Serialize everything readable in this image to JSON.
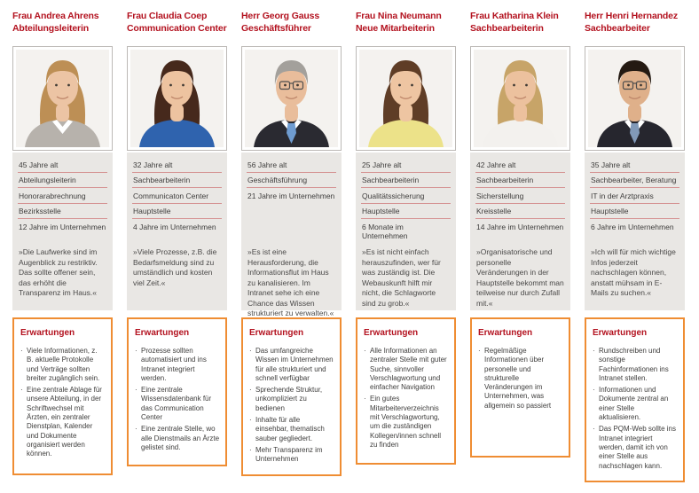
{
  "theme": {
    "red": "#b3121f",
    "orange": "#ef8d33",
    "panel_gray": "#e9e7e4",
    "rule_red": "#d59494",
    "text_dark": "#3e3d3c",
    "photo_bg": "#f4f2ef"
  },
  "section": {
    "expectations_heading": "Erwartungen",
    "bullet_glyph": "·"
  },
  "personas": [
    {
      "name": "Frau Andrea Ahrens",
      "role": "Abteilungsleiterin",
      "facts": [
        "45 Jahre alt",
        "Abteilungsleiterin",
        "Honorarabrechnung",
        "Bezirksstelle",
        "12 Jahre im Unternehmen"
      ],
      "quote": "»Die Laufwerke sind im Augenblick zu restriktiv. Das sollte offener sein, das erhöht die Transparenz im Haus.«",
      "expectations": [
        "Viele Informationen, z. B. aktuelle Protokolle und Verträge sollten breiter zugänglich sein.",
        "Eine zentrale Ablage für unsere Abteilung, in der Schriftwechsel mit Ärzten, ein zentraler Dienstplan, Kalender und Dokumente organisiert werden können."
      ],
      "avatar": {
        "skin": "#ecc4a4",
        "hair": "#bd8f55",
        "clothing": "#b7b2ac",
        "long_hair": "1",
        "collar": "1",
        "tie": "0",
        "tie_color": "#555555",
        "glasses": "0"
      }
    },
    {
      "name": "Frau Claudia Coep",
      "role": "Communication Center",
      "facts": [
        "32 Jahre alt",
        "Sachbearbeiterin",
        "Communicaton Center",
        "Hauptstelle",
        "4 Jahre im Unternehmen"
      ],
      "quote": "»Viele Prozesse, z.B. die Bedarfsmeldung sind zu umständlich und kosten viel Zeit.«",
      "expectations": [
        "Prozesse sollten automatisiert und ins Intranet integriert werden.",
        "Eine zentrale Wissensdatenbank für das Communication Center",
        "Eine zentrale Stelle, wo alle Dienstmails an Ärzte gelistet sind."
      ],
      "avatar": {
        "skin": "#edc3a0",
        "hair": "#46291c",
        "clothing": "#2f63ae",
        "long_hair": "1",
        "collar": "0",
        "tie": "0",
        "tie_color": "#555555",
        "glasses": "0"
      }
    },
    {
      "name": "Herr Georg Gauss",
      "role": "Geschäftsführer",
      "facts": [
        "56 Jahre alt",
        "Geschäftsführung",
        "21 Jahre im Unternehmen"
      ],
      "quote": "»Es ist eine Herausforderung, die Informationsflut im Haus zu kanalisieren. Im Intranet sehe ich eine Chance das Wissen strukturiert zu verwalten.«",
      "expectations": [
        "Das umfangreiche Wissen im Unternehmen für alle strukturiert und schnell verfügbar",
        "Sprechende Struktur, unkompliziert zu bedienen",
        "Inhalte für alle einsehbar, thematisch sauber gegliedert.",
        "Mehr Transparenz im Unternehmen"
      ],
      "avatar": {
        "skin": "#e9bd9b",
        "hair": "#a3a09b",
        "clothing": "#2a2a31",
        "long_hair": "0",
        "collar": "1",
        "tie": "1",
        "tie_color": "#6f9cd1",
        "glasses": "1"
      }
    },
    {
      "name": "Frau Nina Neumann",
      "role": "Neue Mitarbeiterin",
      "facts": [
        "25 Jahre alt",
        "Sachbearbeiterin",
        "Qualitätssicherung",
        "Hauptstelle",
        "6 Monate im Unternehmen"
      ],
      "quote": "»Es ist nicht einfach herauszufinden, wer für was zuständig ist. Die Webauskunft hilft mir nicht, die Schlagworte sind zu grob.«",
      "expectations": [
        "Alle Informationen an zentraler Stelle mit guter Suche, sinnvoller Verschlagwortung und einfacher Navigation",
        "Ein gutes Mitarbeiterverzeichnis mit Verschlagwortung, um die zuständigen Kollegen/innen schnell zu finden"
      ],
      "avatar": {
        "skin": "#eec5a2",
        "hair": "#5f3d26",
        "clothing": "#ece289",
        "long_hair": "1",
        "collar": "0",
        "tie": "0",
        "tie_color": "#555555",
        "glasses": "0"
      }
    },
    {
      "name": "Frau Katharina Klein",
      "role": "Sachbearbeiterin",
      "facts": [
        "42 Jahre alt",
        "Sachbearbeiterin",
        "Sicherstellung",
        "Kreisstelle",
        "14 Jahre im Unternehmen"
      ],
      "quote": "»Organisatorische und personelle Veränderungen in der Hauptstelle bekommt man teilweise nur durch Zufall mit.«",
      "expectations": [
        "Regelmäßige Informationen über personelle und strukturelle Veränderungen im Unternehmen, was allgemein so passiert"
      ],
      "avatar": {
        "skin": "#ecc19e",
        "hair": "#c7a468",
        "clothing": "#f3f1ee",
        "long_hair": "1",
        "collar": "0",
        "tie": "0",
        "tie_color": "#555555",
        "glasses": "0"
      }
    },
    {
      "name": "Herr Henri Hernandez",
      "role": "Sachbearbeiter",
      "facts": [
        "35 Jahre alt",
        "Sachbearbeiter, Beratung",
        "IT in der Arztpraxis",
        "Hauptstelle",
        "6 Jahre im Unternehmen"
      ],
      "quote": "»Ich will für mich wichtige Infos jederzeit nachschlagen können, anstatt mühsam in E-Mails zu suchen.«",
      "expectations": [
        "Rundschreiben und sonstige Fachinformationen ins Intranet stellen.",
        "Informationen und Dokumente zentral an einer Stelle aktualisieren.",
        "Das PQM-Web sollte ins Intranet integriert werden, damit ich von einer Stelle aus nachschlagen kann."
      ],
      "avatar": {
        "skin": "#dfb08a",
        "hair": "#241a12",
        "clothing": "#26262e",
        "long_hair": "0",
        "collar": "1",
        "tie": "1",
        "tie_color": "#8199b8",
        "glasses": "1"
      }
    }
  ]
}
